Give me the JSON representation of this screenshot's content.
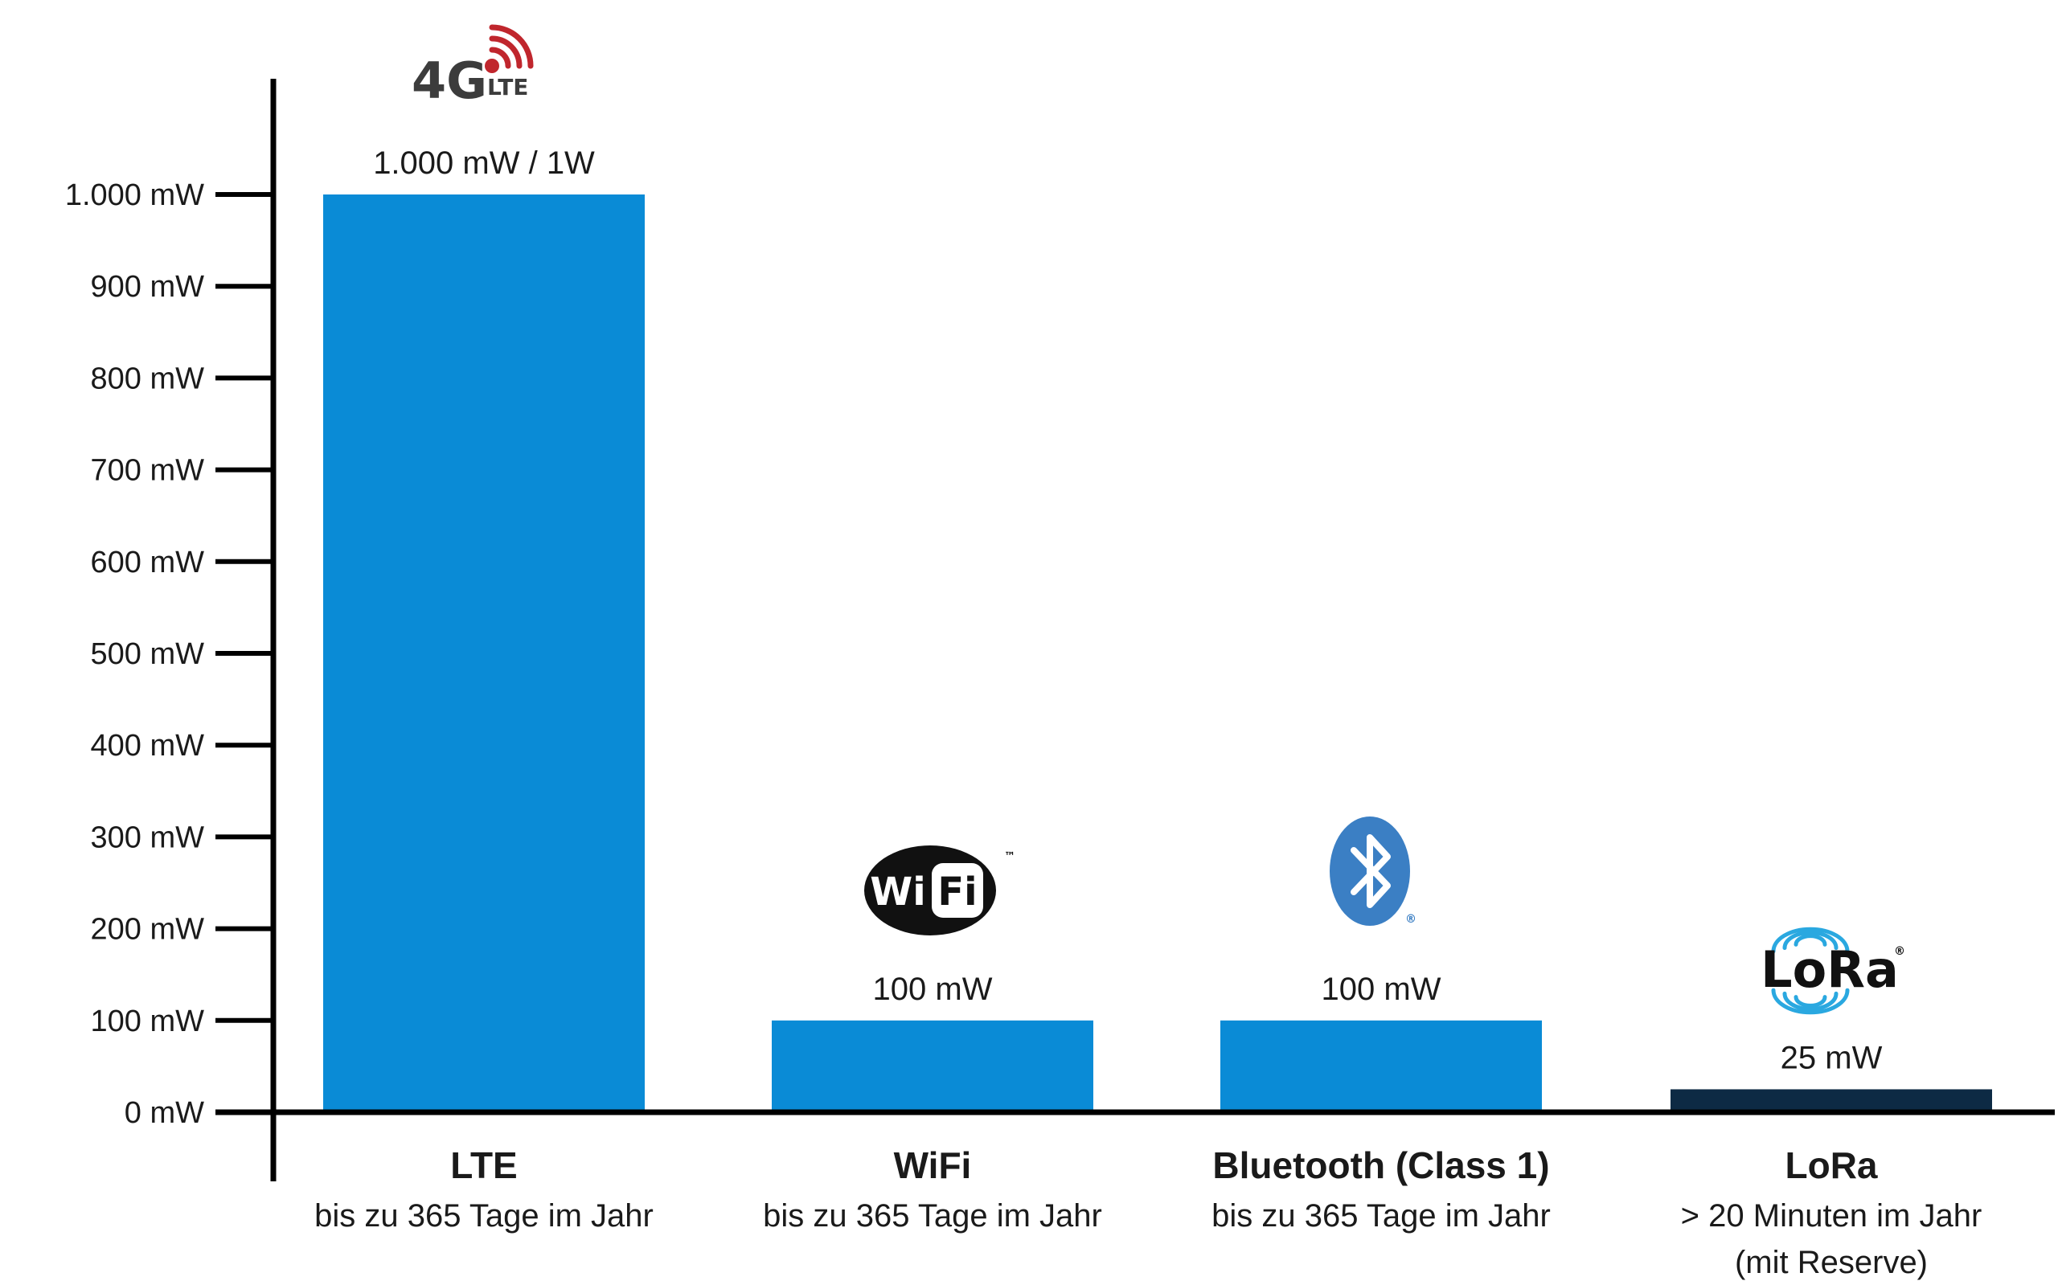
{
  "chart_data": {
    "type": "bar",
    "categories": [
      "LTE",
      "WiFi",
      "Bluetooth (Class 1)",
      "LoRa"
    ],
    "category_subtitles": [
      [
        "bis zu 365 Tage im Jahr"
      ],
      [
        "bis zu 365 Tage im Jahr"
      ],
      [
        "bis zu 365 Tage im Jahr"
      ],
      [
        "> 20 Minuten im Jahr",
        "(mit Reserve)"
      ]
    ],
    "values": [
      1000,
      100,
      100,
      25
    ],
    "value_labels": [
      "1.000 mW / 1W",
      "100 mW",
      "100 mW",
      "25 mW"
    ],
    "bar_colors": [
      "#0a8bd6",
      "#0a8bd6",
      "#0a8bd6",
      "#0d2a44"
    ],
    "ylim": [
      0,
      1000
    ],
    "yticks": [
      0,
      100,
      200,
      300,
      400,
      500,
      600,
      700,
      800,
      900,
      1000
    ],
    "ytick_labels": [
      "0 mW",
      "100 mW",
      "200 mW",
      "300 mW",
      "400 mW",
      "500 mW",
      "600 mW",
      "700 mW",
      "800 mW",
      "900 mW",
      "1.000 mW"
    ],
    "grid": false,
    "legend": "none",
    "title": "",
    "xlabel": "",
    "ylabel": "",
    "logos": [
      {
        "icon": "4g-lte-logo-icon",
        "text_main": "4G",
        "text_small": "LTE"
      },
      {
        "icon": "wifi-logo-icon",
        "text_main": "Wi",
        "text_box": "Fi",
        "mark": "™"
      },
      {
        "icon": "bluetooth-logo-icon",
        "mark": "®"
      },
      {
        "icon": "lora-logo-icon",
        "text_main": "LoRa",
        "mark": "®"
      }
    ]
  },
  "colors": {
    "axis": "#000000",
    "bar_primary": "#0a8bd6",
    "bar_dark": "#0d2a44",
    "lte_signal": "#c0262d",
    "lte_text": "#3c3c3c",
    "bluetooth": "#3b7fc4",
    "lora_waves": "#2aa8e0",
    "lora_text": "#111111"
  }
}
